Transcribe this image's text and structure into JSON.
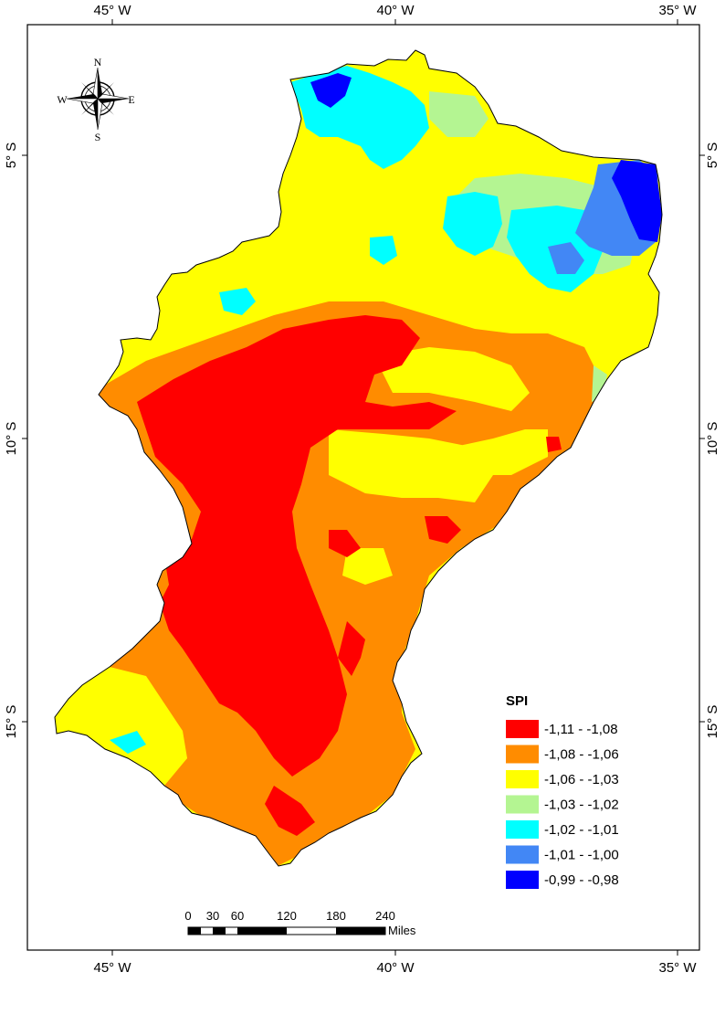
{
  "map": {
    "axes": {
      "top": [
        "45° W",
        "40° W",
        "35° W"
      ],
      "bottom": [
        "45° W",
        "40° W",
        "35° W"
      ],
      "left": [
        "5° S",
        "10° S",
        "15° S"
      ],
      "right": [
        "5° S",
        "10° S",
        "15° S"
      ]
    },
    "compass": {
      "n": "N",
      "s": "S",
      "e": "E",
      "w": "W"
    },
    "legend": {
      "title": "SPI",
      "items": [
        {
          "label": "-1,11 - -1,08",
          "color": "#ff0000"
        },
        {
          "label": "-1,08 - -1,06",
          "color": "#ff8c00"
        },
        {
          "label": "-1,06 - -1,03",
          "color": "#ffff00"
        },
        {
          "label": "-1,03 - -1,02",
          "color": "#b4f592"
        },
        {
          "label": "-1,02 - -1,01",
          "color": "#00ffff"
        },
        {
          "label": "-1,01 - -1,00",
          "color": "#4287f5"
        },
        {
          "label": "-0,99 - -0,98",
          "color": "#0000ff"
        }
      ]
    },
    "scalebar": {
      "ticks": [
        "0",
        "30",
        "60",
        "120",
        "180",
        "240"
      ],
      "unit": "Miles"
    }
  }
}
